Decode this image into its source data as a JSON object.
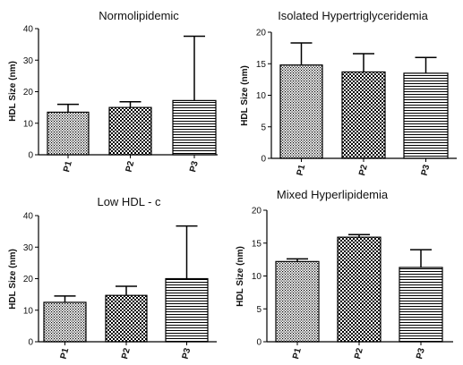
{
  "chart_data": [
    {
      "type": "bar",
      "title": "Normolipidemic",
      "ylabel": "HDL Size (nm)",
      "xlabel": "",
      "categories": [
        "P1",
        "P2",
        "P3"
      ],
      "values": [
        13.5,
        15.0,
        17.2
      ],
      "error_upper": [
        16.0,
        16.8,
        37.6
      ],
      "ylim": [
        0,
        40
      ],
      "yticks": [
        0,
        10,
        20,
        30,
        40
      ],
      "patterns": [
        "dots",
        "checker",
        "hlines"
      ]
    },
    {
      "type": "bar",
      "title": "Isolated Hypertriglyceridemia",
      "ylabel": "HDL Size (nm)",
      "xlabel": "",
      "categories": [
        "P1",
        "P2",
        "P3"
      ],
      "values": [
        14.8,
        13.7,
        13.5
      ],
      "error_upper": [
        18.3,
        16.6,
        16.0
      ],
      "ylim": [
        0,
        20
      ],
      "yticks": [
        0,
        5,
        10,
        15,
        20
      ],
      "patterns": [
        "dots",
        "checker",
        "hlines"
      ]
    },
    {
      "type": "bar",
      "title": "Low HDL - c",
      "ylabel": "HDL Size (nm)",
      "xlabel": "",
      "categories": [
        "P1",
        "P2",
        "P3"
      ],
      "values": [
        12.5,
        14.7,
        20.0
      ],
      "error_upper": [
        14.5,
        17.6,
        36.7
      ],
      "ylim": [
        0,
        40
      ],
      "yticks": [
        0,
        10,
        20,
        30,
        40
      ],
      "patterns": [
        "dots",
        "checker",
        "hlines"
      ]
    },
    {
      "type": "bar",
      "title": "Mixed Hyperlipidemia",
      "ylabel": "HDL Size (nm)",
      "xlabel": "",
      "categories": [
        "P1",
        "P2",
        "P3"
      ],
      "values": [
        12.2,
        15.9,
        11.3
      ],
      "error_upper": [
        12.6,
        16.3,
        14.0
      ],
      "ylim": [
        0,
        20
      ],
      "yticks": [
        0,
        5,
        10,
        15,
        20
      ],
      "patterns": [
        "dots",
        "checker",
        "hlines"
      ]
    }
  ],
  "colors": {
    "axis": "#000000",
    "bar_stroke": "#000000",
    "pattern_ink": "#000000",
    "background": "#ffffff"
  }
}
